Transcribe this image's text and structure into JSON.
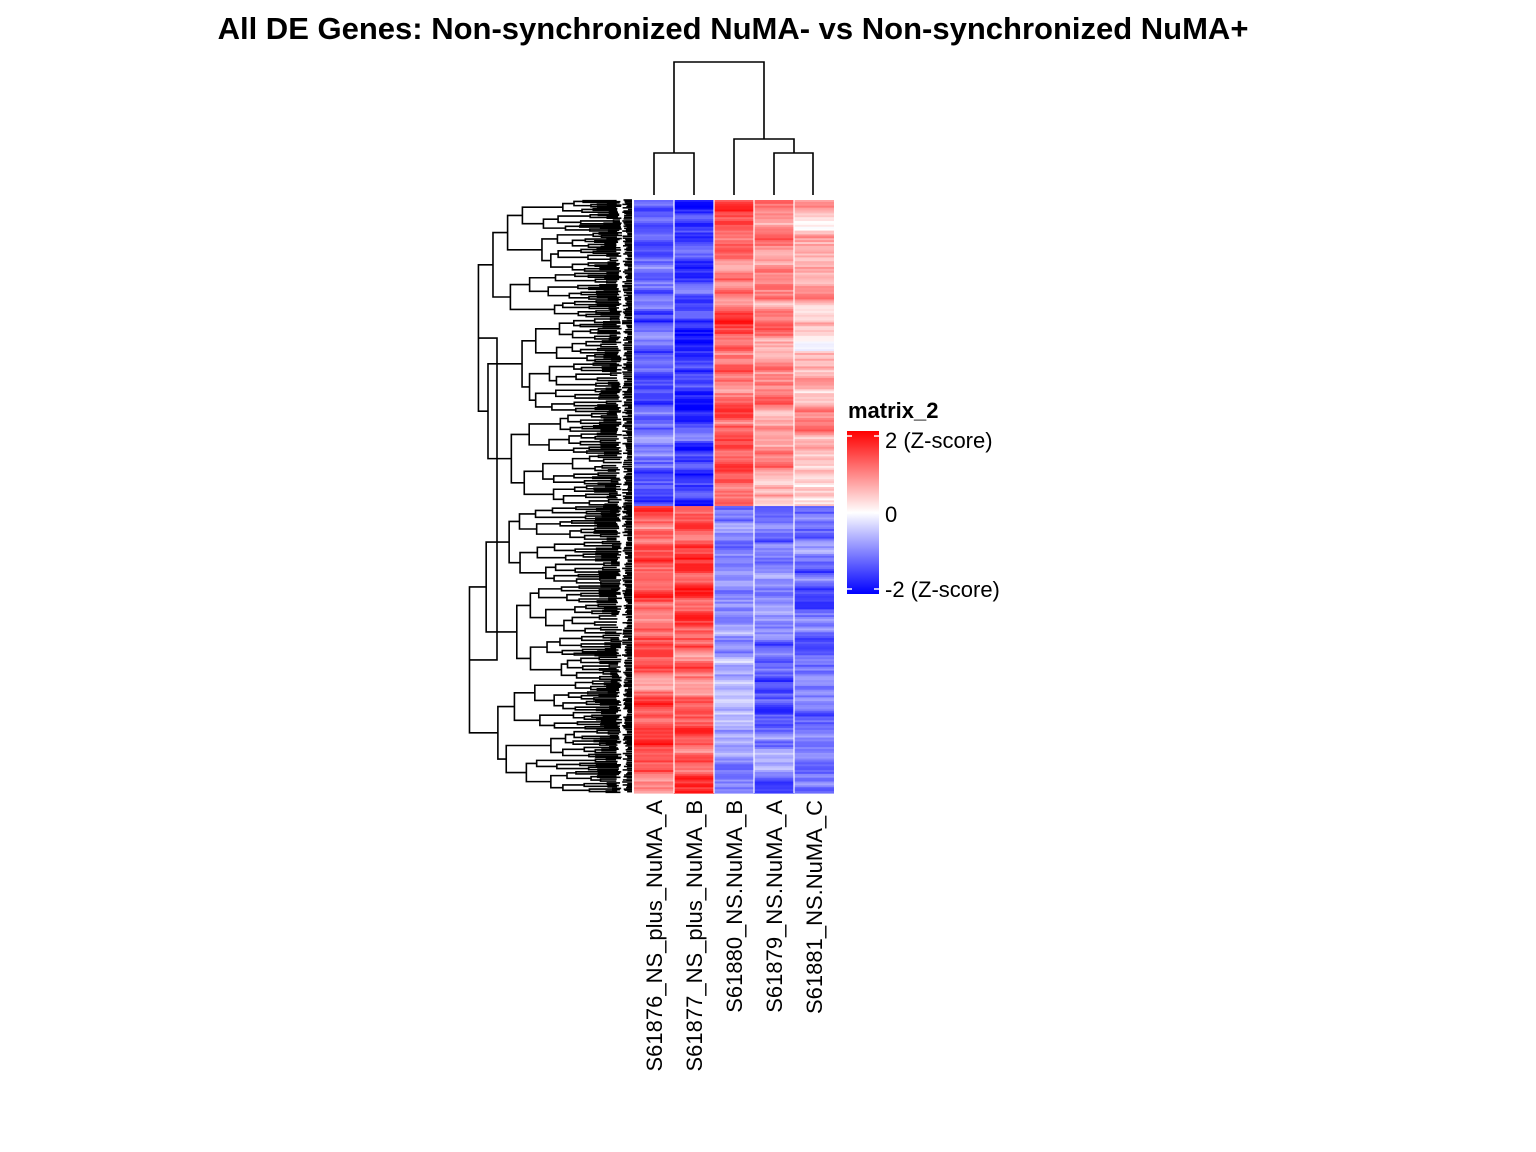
{
  "chart_data": {
    "type": "heatmap",
    "title": "All DE Genes: Non-synchronized NuMA-  vs  Non-synchronized NuMA+",
    "columns": [
      "S61876_NS_plus_NuMA_A",
      "S61877_NS_plus_NuMA_B",
      "S61880_NS.NuMA_B",
      "S61879_NS.NuMA_A",
      "S61881_NS.NuMA_C"
    ],
    "row_clusters": [
      {
        "name": "",
        "approx_rows": 160,
        "mean_z": [
          -1.3,
          -1.6,
          1.2,
          0.9,
          0.6
        ]
      },
      {
        "name": "",
        "approx_rows": 150,
        "mean_z": [
          1.2,
          1.4,
          -0.9,
          -1.0,
          -1.1
        ]
      }
    ],
    "legend": {
      "title": "matrix_2",
      "ticks": [
        {
          "value": 2,
          "label": "2 (Z-score)"
        },
        {
          "value": 0,
          "label": "0"
        },
        {
          "value": -2,
          "label": "-2 (Z-score)"
        }
      ],
      "colors": {
        "low": "#0000ff",
        "mid": "#ffffff",
        "high": "#ff0000"
      }
    },
    "grid": false
  }
}
